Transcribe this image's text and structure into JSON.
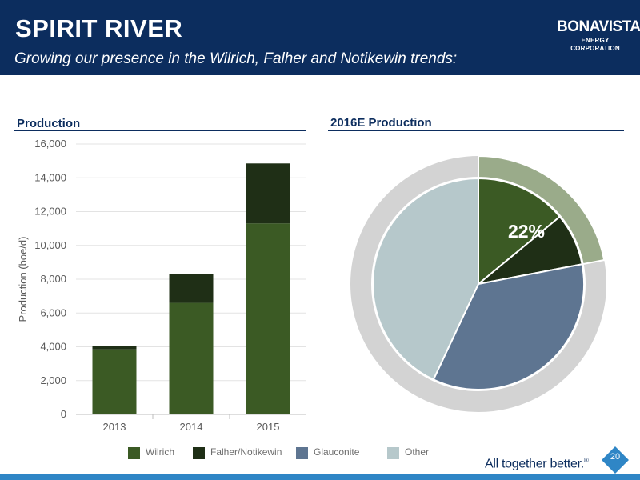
{
  "header": {
    "title": "SPIRIT RIVER",
    "subtitle": "Growing our presence in the Wilrich, Falher and Notikewin trends:",
    "logo_name": "BONAVISTA",
    "logo_sub": "ENERGY CORPORATION"
  },
  "colors": {
    "header_bg": "#0c2d5e",
    "wilrich": "#3b5a24",
    "falher_notikewin": "#1f2f16",
    "glauconite": "#5e7591",
    "other": "#b6c8cb",
    "pie_ring": "#d3d3d3",
    "pie_highlight_ring": "#9aab8a",
    "footer_bar": "#2f86c6"
  },
  "chart_data": [
    {
      "type": "bar",
      "title": "Production",
      "ylabel": "Production (boe/d)",
      "xlabel": "",
      "categories": [
        "2013",
        "2014",
        "2015"
      ],
      "series": [
        {
          "name": "Wilrich",
          "values": [
            3850,
            6600,
            11300
          ]
        },
        {
          "name": "Falher/Notikewin",
          "values": [
            200,
            1700,
            3550
          ]
        }
      ],
      "ylim": [
        0,
        16000
      ],
      "yticks": [
        0,
        2000,
        4000,
        6000,
        8000,
        10000,
        12000,
        14000,
        16000
      ],
      "ytick_labels": [
        "0",
        "2,000",
        "4,000",
        "6,000",
        "8,000",
        "10,000",
        "12,000",
        "14,000",
        "16,000"
      ],
      "stacked": true,
      "grid": true
    },
    {
      "type": "pie",
      "title": "2016E Production",
      "slices": [
        {
          "name": "Wilrich",
          "value": 14
        },
        {
          "name": "Falher/Notikewin",
          "value": 8
        },
        {
          "name": "Glauconite",
          "value": 35
        },
        {
          "name": "Other",
          "value": 43
        }
      ],
      "outer_ring_highlight": 22,
      "annotation": "22%"
    }
  ],
  "legend": [
    {
      "label": "Wilrich",
      "color": "#3b5a24"
    },
    {
      "label": "Falher/Notikewin",
      "color": "#1f2f16"
    },
    {
      "label": "Glauconite",
      "color": "#5e7591"
    },
    {
      "label": "Other",
      "color": "#b6c8cb"
    }
  ],
  "footer": {
    "tagline": "All together better.",
    "tagline_mark": "®",
    "page_number": "20"
  }
}
